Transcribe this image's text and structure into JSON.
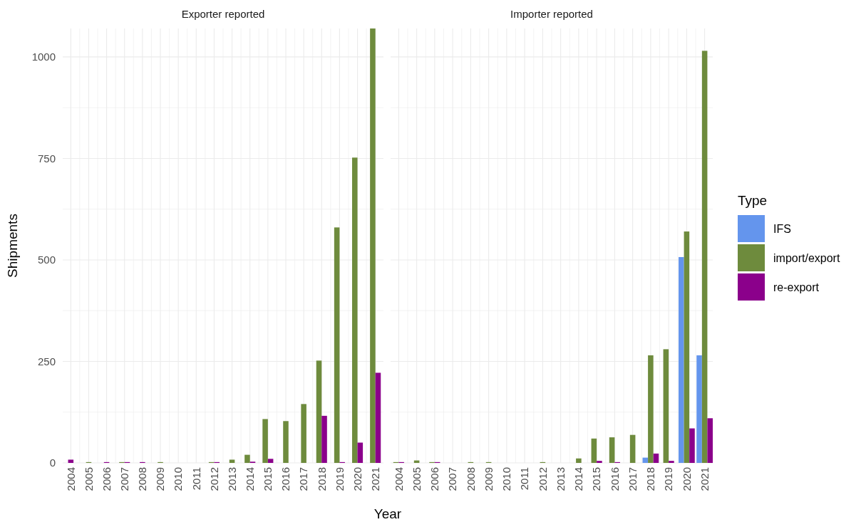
{
  "chart_data": [
    {
      "type": "bar",
      "title": "Exporter reported",
      "ylabel": "Shipments",
      "categories": [
        "2004",
        "2005",
        "2006",
        "2007",
        "2008",
        "2009",
        "2010",
        "2011",
        "2012",
        "2013",
        "2014",
        "2015",
        "2016",
        "2017",
        "2018",
        "2019",
        "2020",
        "2021"
      ],
      "series": [
        {
          "color": "#6e8b3d",
          "values": [
            null,
            2,
            null,
            2,
            null,
            2,
            null,
            null,
            2,
            8,
            20,
            108,
            103,
            145,
            252,
            580,
            752,
            1070
          ]
        },
        {
          "color": "#8b008b",
          "values": [
            8,
            null,
            2,
            2,
            2,
            null,
            null,
            null,
            2,
            null,
            3,
            10,
            null,
            null,
            116,
            2,
            50,
            222
          ]
        }
      ],
      "ylim": [
        0,
        1070
      ],
      "yticks": [
        0,
        {
          "value": 125,
          "label": null
        },
        250,
        {
          "value": 375,
          "label": null
        },
        500,
        {
          "value": 625,
          "label": null
        },
        750,
        {
          "value": 875,
          "label": null
        },
        1000
      ],
      "grid": true
    },
    {
      "type": "bar",
      "title": "Importer reported",
      "xlabel": "Year",
      "legend_title": "Type",
      "legend": "right",
      "tick_labels": "x",
      "categories": [
        "2004",
        "2005",
        "2006",
        "2007",
        "2008",
        "2009",
        "2010",
        "2011",
        "2012",
        "2013",
        "2014",
        "2015",
        "2016",
        "2017",
        "2018",
        "2019",
        "2020",
        "2021"
      ],
      "series": [
        {
          "name": "IFS",
          "color": "#6495ed",
          "values": [
            null,
            null,
            null,
            null,
            null,
            null,
            null,
            null,
            null,
            null,
            null,
            null,
            null,
            null,
            13,
            null,
            507,
            265
          ]
        },
        {
          "name": "import/export",
          "color": "#6e8b3d",
          "values": [
            2,
            6,
            2,
            null,
            2,
            2,
            null,
            null,
            2,
            null,
            11,
            60,
            63,
            69,
            265,
            280,
            570,
            1015
          ]
        },
        {
          "name": "re-export",
          "color": "#8b008b",
          "values": [
            2,
            null,
            2,
            null,
            null,
            null,
            null,
            null,
            null,
            null,
            null,
            5,
            2,
            null,
            23,
            5,
            85,
            110
          ]
        }
      ],
      "ylim": [
        0,
        1070
      ],
      "yticks": [
        0,
        {
          "value": 125,
          "label": null
        },
        250,
        {
          "value": 375,
          "label": null
        },
        500,
        {
          "value": 625,
          "label": null
        },
        750,
        {
          "value": 875,
          "label": null
        },
        1000
      ],
      "grid": true
    }
  ]
}
